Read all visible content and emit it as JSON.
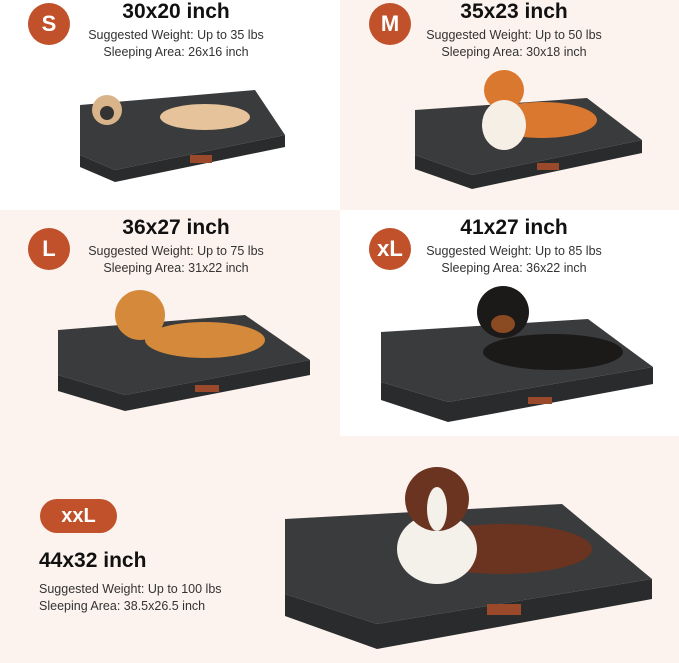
{
  "colors": {
    "badge": "#c0512b",
    "peach": "#fcf3ee",
    "bed": "#3a3b3d",
    "bed_dark": "#2a2b2d"
  },
  "sizes": [
    {
      "badge": "S",
      "dimensions": "30x20 inch",
      "weight": "Suggested Weight: Up to 35 lbs",
      "area": "Sleeping Area: 26x16 inch"
    },
    {
      "badge": "M",
      "dimensions": "35x23 inch",
      "weight": "Suggested Weight: Up to 50 lbs",
      "area": "Sleeping Area: 30x18 inch"
    },
    {
      "badge": "L",
      "dimensions": "36x27 inch",
      "weight": "Suggested Weight: Up to 75 lbs",
      "area": "Sleeping Area: 31x22 inch"
    },
    {
      "badge": "xL",
      "dimensions": "41x27 inch",
      "weight": "Suggested Weight: Up to 85 lbs",
      "area": "Sleeping Area: 36x22 inch"
    },
    {
      "badge": "xxL",
      "dimensions": "44x32 inch",
      "weight": "Suggested Weight: Up to 100 lbs",
      "area": "Sleeping Area: 38.5x26.5 inch"
    }
  ]
}
